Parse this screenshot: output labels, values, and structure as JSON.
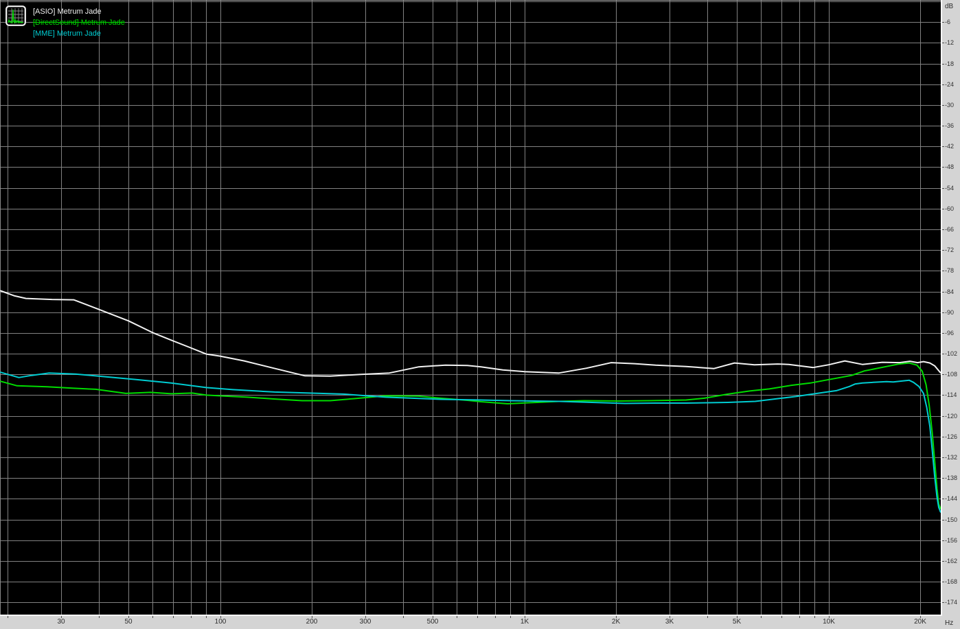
{
  "window": {
    "icon": "spectrum-analyzer-icon"
  },
  "legend": {
    "items": [
      {
        "label": "[ASIO] Metrum Jade",
        "color": "#f2f2f2",
        "strikethrough": false
      },
      {
        "label": "[DirectSound] Metrum Jade",
        "color": "#00dd00",
        "strikethrough": true
      },
      {
        "label": "[MME] Metrum Jade",
        "color": "#00cdd2",
        "strikethrough": false
      }
    ]
  },
  "axes": {
    "x": {
      "unit_label": "Hz",
      "scale": "log",
      "gridline_hz": [
        20,
        30,
        40,
        50,
        60,
        70,
        80,
        90,
        100,
        200,
        300,
        400,
        500,
        600,
        700,
        800,
        900,
        1000,
        2000,
        3000,
        4000,
        5000,
        6000,
        7000,
        8000,
        9000,
        10000,
        20000
      ],
      "labeled_ticks": [
        {
          "hz": 30,
          "label": "30"
        },
        {
          "hz": 50,
          "label": "50"
        },
        {
          "hz": 100,
          "label": "100"
        },
        {
          "hz": 200,
          "label": "200"
        },
        {
          "hz": 300,
          "label": "300"
        },
        {
          "hz": 500,
          "label": "500"
        },
        {
          "hz": 1000,
          "label": "1K"
        },
        {
          "hz": 2000,
          "label": "2K"
        },
        {
          "hz": 3000,
          "label": "3K"
        },
        {
          "hz": 5000,
          "label": "5K"
        },
        {
          "hz": 10000,
          "label": "10K"
        },
        {
          "hz": 20000,
          "label": "20K"
        }
      ]
    },
    "y": {
      "unit_label": "dB",
      "step_db": 6,
      "tick_labels": [
        "-6",
        "-12",
        "-18",
        "-24",
        "-30",
        "-36",
        "-42",
        "-48",
        "-54",
        "-60",
        "-66",
        "-72",
        "-78",
        "-84",
        "-90",
        "-96",
        "-102",
        "-108",
        "-114",
        "-120",
        "-126",
        "-132",
        "-138",
        "-144",
        "-150",
        "-156",
        "-162",
        "-168",
        "-174"
      ]
    }
  },
  "colors": {
    "background": "#000000",
    "grid": "#828282",
    "axis_strip": "#d4d4d4",
    "axis_text": "#2b2b2b",
    "plot_edge_light": "#f8f8f8",
    "plot_edge_dark": "#8a8a8a"
  },
  "chart_data": {
    "type": "line",
    "title": "",
    "xlabel": "Hz",
    "ylabel": "dB",
    "x_scale": "log",
    "xlim": [
      18.9,
      23600
    ],
    "ylim": [
      -178,
      0
    ],
    "grid": true,
    "legend_position": "top-left",
    "series": [
      {
        "name": "[ASIO] Metrum Jade",
        "color": "#f2f2f2",
        "points": [
          [
            19,
            -83.8
          ],
          [
            21,
            -85.2
          ],
          [
            23,
            -86.0
          ],
          [
            28,
            -86.3
          ],
          [
            33,
            -86.4
          ],
          [
            40,
            -89.2
          ],
          [
            50,
            -92.5
          ],
          [
            60,
            -95.9
          ],
          [
            70,
            -98.3
          ],
          [
            80,
            -100.3
          ],
          [
            90,
            -102.1
          ],
          [
            100,
            -102.7
          ],
          [
            120,
            -104.1
          ],
          [
            150,
            -106.2
          ],
          [
            190,
            -108.4
          ],
          [
            230,
            -108.5
          ],
          [
            290,
            -108.0
          ],
          [
            360,
            -107.6
          ],
          [
            450,
            -105.8
          ],
          [
            550,
            -105.3
          ],
          [
            650,
            -105.4
          ],
          [
            720,
            -105.8
          ],
          [
            850,
            -106.7
          ],
          [
            1000,
            -107.2
          ],
          [
            1300,
            -107.6
          ],
          [
            1600,
            -106.2
          ],
          [
            1930,
            -104.6
          ],
          [
            2300,
            -104.9
          ],
          [
            2700,
            -105.3
          ],
          [
            3400,
            -105.7
          ],
          [
            4200,
            -106.3
          ],
          [
            4900,
            -104.7
          ],
          [
            5700,
            -105.2
          ],
          [
            6800,
            -105.0
          ],
          [
            7400,
            -105.1
          ],
          [
            8900,
            -106.0
          ],
          [
            10000,
            -105.2
          ],
          [
            11300,
            -104.1
          ],
          [
            12900,
            -105.1
          ],
          [
            15000,
            -104.5
          ],
          [
            17100,
            -104.6
          ],
          [
            18500,
            -104.2
          ],
          [
            19600,
            -104.6
          ],
          [
            20500,
            -104.3
          ],
          [
            21500,
            -104.7
          ],
          [
            22300,
            -105.5
          ],
          [
            23000,
            -106.9
          ],
          [
            23300,
            -107.5
          ],
          [
            23600,
            -107.3
          ]
        ]
      },
      {
        "name": "[DirectSound] Metrum Jade",
        "color": "#00dd00",
        "points": [
          [
            19,
            -110.0
          ],
          [
            21.5,
            -111.3
          ],
          [
            27,
            -111.6
          ],
          [
            33,
            -112.0
          ],
          [
            39,
            -112.3
          ],
          [
            49,
            -113.5
          ],
          [
            59,
            -113.2
          ],
          [
            69,
            -113.6
          ],
          [
            81,
            -113.4
          ],
          [
            90,
            -114.0
          ],
          [
            110,
            -114.4
          ],
          [
            123,
            -114.6
          ],
          [
            150,
            -115.1
          ],
          [
            186,
            -115.6
          ],
          [
            230,
            -115.6
          ],
          [
            276,
            -115.0
          ],
          [
            350,
            -114.2
          ],
          [
            450,
            -114.3
          ],
          [
            530,
            -114.9
          ],
          [
            650,
            -115.5
          ],
          [
            720,
            -115.9
          ],
          [
            880,
            -116.5
          ],
          [
            1100,
            -116.1
          ],
          [
            1300,
            -115.8
          ],
          [
            1570,
            -115.6
          ],
          [
            2030,
            -115.7
          ],
          [
            2600,
            -115.6
          ],
          [
            3400,
            -115.4
          ],
          [
            3900,
            -114.9
          ],
          [
            4670,
            -113.7
          ],
          [
            5500,
            -112.8
          ],
          [
            6380,
            -112.2
          ],
          [
            7500,
            -111.2
          ],
          [
            8700,
            -110.5
          ],
          [
            10000,
            -109.5
          ],
          [
            11900,
            -108.3
          ],
          [
            13100,
            -107.0
          ],
          [
            15500,
            -105.7
          ],
          [
            17000,
            -105.0
          ],
          [
            18400,
            -104.7
          ],
          [
            19500,
            -105.3
          ],
          [
            20300,
            -107.1
          ],
          [
            20900,
            -111.0
          ],
          [
            21400,
            -117.0
          ],
          [
            21900,
            -125.0
          ],
          [
            22300,
            -133.0
          ],
          [
            22700,
            -141.0
          ],
          [
            23000,
            -145.5
          ],
          [
            23300,
            -146.8
          ],
          [
            23600,
            -147.1
          ]
        ]
      },
      {
        "name": "[MME] Metrum Jade",
        "color": "#00cdd2",
        "points": [
          [
            19,
            -107.4
          ],
          [
            21.8,
            -108.9
          ],
          [
            24,
            -108.3
          ],
          [
            27.4,
            -107.6
          ],
          [
            33.5,
            -107.9
          ],
          [
            41,
            -108.6
          ],
          [
            53,
            -109.5
          ],
          [
            69,
            -110.5
          ],
          [
            90,
            -111.8
          ],
          [
            110,
            -112.4
          ],
          [
            151,
            -113.1
          ],
          [
            254,
            -113.7
          ],
          [
            350,
            -114.6
          ],
          [
            530,
            -115.2
          ],
          [
            718,
            -115.4
          ],
          [
            900,
            -115.6
          ],
          [
            1300,
            -115.8
          ],
          [
            2140,
            -116.4
          ],
          [
            2700,
            -116.3
          ],
          [
            3400,
            -116.3
          ],
          [
            4670,
            -116.1
          ],
          [
            5740,
            -115.8
          ],
          [
            7000,
            -114.9
          ],
          [
            7800,
            -114.4
          ],
          [
            9500,
            -113.3
          ],
          [
            10600,
            -112.7
          ],
          [
            11700,
            -111.5
          ],
          [
            12200,
            -110.8
          ],
          [
            12900,
            -110.5
          ],
          [
            14000,
            -110.3
          ],
          [
            15500,
            -110.1
          ],
          [
            16300,
            -110.2
          ],
          [
            17500,
            -109.9
          ],
          [
            18400,
            -109.7
          ],
          [
            19000,
            -110.3
          ],
          [
            19800,
            -111.5
          ],
          [
            20500,
            -113.5
          ],
          [
            21000,
            -117.5
          ],
          [
            21500,
            -123.0
          ],
          [
            21900,
            -130.0
          ],
          [
            22300,
            -137.5
          ],
          [
            22700,
            -143.5
          ],
          [
            23000,
            -146.5
          ],
          [
            23300,
            -147.8
          ],
          [
            23600,
            -148.2
          ]
        ]
      }
    ]
  }
}
